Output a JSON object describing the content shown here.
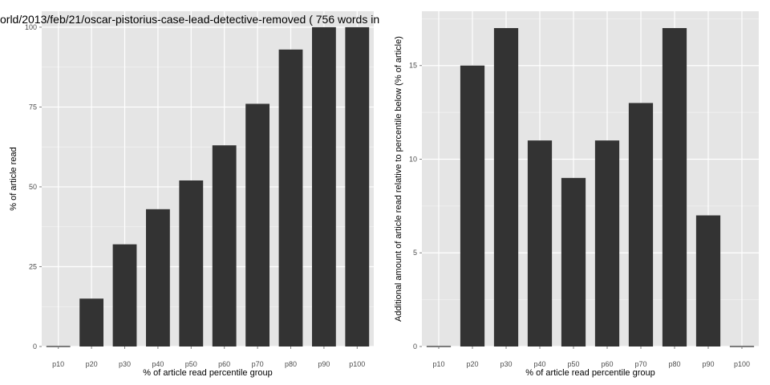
{
  "page": {
    "title": "orld/2013/feb/21/oscar-pistorius-case-lead-detective-removed ( 756 words in"
  },
  "colors": {
    "panel_bg": "#e5e5e5",
    "grid_major": "#ffffff",
    "grid_minor": "#f2f2f2",
    "bar_fill": "#333333",
    "tick_text": "#4d4d4d"
  },
  "chart_data": [
    {
      "type": "bar",
      "xlabel": "% of article read percentile group",
      "ylabel": "% of article read",
      "categories": [
        "p10",
        "p20",
        "p30",
        "p40",
        "p50",
        "p60",
        "p70",
        "p80",
        "p90",
        "p100"
      ],
      "values": [
        0,
        15,
        32,
        43,
        52,
        63,
        76,
        93,
        100,
        100
      ],
      "ylim": [
        0,
        105
      ],
      "yticks": [
        0,
        25,
        50,
        75,
        100
      ],
      "grid": true
    },
    {
      "type": "bar",
      "xlabel": "% of article read percentile group",
      "ylabel": "Additional amount of article read relative to percentile below (% of article)",
      "categories": [
        "p10",
        "p20",
        "p30",
        "p40",
        "p50",
        "p60",
        "p70",
        "p80",
        "p90",
        "p100"
      ],
      "values": [
        0,
        15,
        17,
        11,
        9,
        11,
        13,
        17,
        7,
        0
      ],
      "ylim": [
        0,
        17.9
      ],
      "yticks": [
        0,
        5,
        10,
        15
      ],
      "grid": true
    }
  ]
}
